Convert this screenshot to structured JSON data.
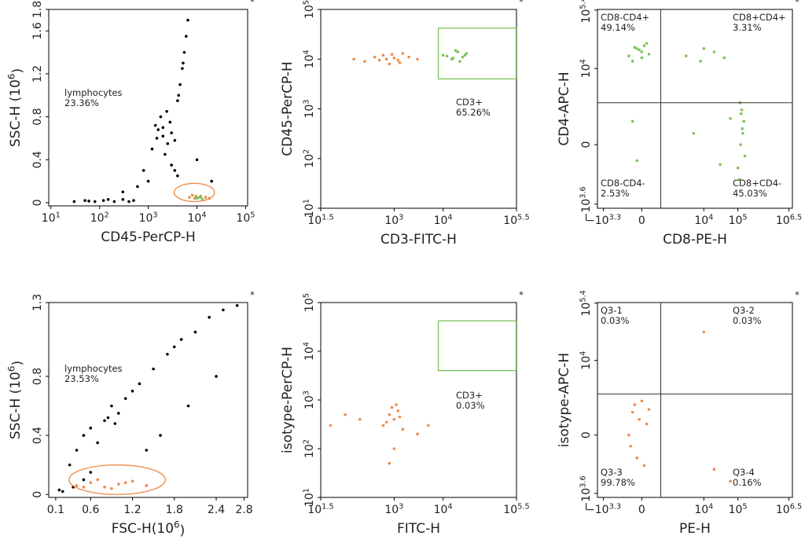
{
  "chart_data": [
    {
      "type": "scatter",
      "xlabel": "CD45-PerCP-H",
      "ylabel": "SSC-H (10^6)",
      "xscale": "log",
      "yscale": "linear",
      "xlim": [
        9,
        110000
      ],
      "ylim": [
        -0.03,
        1.8
      ],
      "xticks": [
        {
          "value": 10,
          "label": "10^1"
        },
        {
          "value": 100,
          "label": "10^2"
        },
        {
          "value": 1000,
          "label": "10^3"
        },
        {
          "value": 10000,
          "label": "10^4"
        },
        {
          "value": 100000,
          "label": "10^5"
        }
      ],
      "yticks": [
        0,
        0.4,
        0.8,
        1.2,
        1.6,
        1.8
      ],
      "marker": "*",
      "gate": {
        "shape": "ellipse",
        "color": "#f08a4b",
        "x": [
          3400,
          23000
        ],
        "y": [
          0.01,
          0.18
        ]
      },
      "gate_label": "lymphocytes",
      "gate_value": "23.36%",
      "gate_label_color": "#f08a4b",
      "series": [
        {
          "color": "#000000",
          "x": [
            30,
            50,
            80,
            120,
            200,
            300,
            500,
            150,
            400,
            60,
            1500,
            2000,
            2500,
            1800,
            3000,
            1200,
            2200,
            2800,
            1600,
            3500,
            2000,
            2400,
            1400,
            4000,
            4500,
            5000,
            5500,
            6000,
            6500,
            4200,
            5200,
            3500,
            4000,
            3000,
            800,
            1000,
            600,
            10000,
            20000,
            300
          ],
          "y": [
            0.01,
            0.02,
            0.01,
            0.02,
            0.01,
            0.03,
            0.02,
            0.03,
            0.01,
            0.015,
            0.6,
            0.7,
            0.55,
            0.8,
            0.65,
            0.5,
            0.45,
            0.75,
            0.68,
            0.58,
            0.62,
            0.85,
            0.72,
            0.95,
            1.1,
            1.25,
            1.4,
            1.55,
            1.7,
            1.0,
            1.3,
            0.3,
            0.25,
            0.35,
            0.3,
            0.2,
            0.15,
            0.4,
            0.2,
            0.1
          ]
        },
        {
          "color": "#f08a4b",
          "x": [
            7000,
            9000,
            12000,
            15000,
            8000,
            18000
          ],
          "y": [
            0.05,
            0.04,
            0.06,
            0.05,
            0.07,
            0.04
          ]
        },
        {
          "color": "#7cc45a",
          "x": [
            10000,
            12000,
            9500,
            13000,
            11000
          ],
          "y": [
            0.04,
            0.05,
            0.06,
            0.03,
            0.05
          ]
        }
      ]
    },
    {
      "type": "scatter",
      "xlabel": "CD3-FITC-H",
      "ylabel": "CD45-PerCP-H",
      "xscale": "log",
      "yscale": "log",
      "xlim": [
        31.62,
        316228
      ],
      "ylim": [
        10,
        100000
      ],
      "xticks": [
        {
          "value": 31.62,
          "label": "10^1.5"
        },
        {
          "value": 1000,
          "label": "10^3"
        },
        {
          "value": 10000,
          "label": "10^4"
        },
        {
          "value": 316228,
          "label": "10^5.5"
        }
      ],
      "yticks": [
        {
          "value": 10,
          "label": "10^1"
        },
        {
          "value": 100,
          "label": "10^2"
        },
        {
          "value": 1000,
          "label": "10^3"
        },
        {
          "value": 10000,
          "label": "10^4"
        },
        {
          "value": 100000,
          "label": "10^5"
        }
      ],
      "marker": "*",
      "gate": {
        "shape": "rect",
        "color": "#7cc45a",
        "x": [
          8000,
          310000
        ],
        "y": [
          4000,
          42000
        ]
      },
      "gate_label": "CD3+",
      "gate_value": "65.26%",
      "gate_label_color": "#7cc45a",
      "series": [
        {
          "color": "#f08a4b",
          "x": [
            150,
            250,
            400,
            600,
            800,
            1000,
            1200,
            1500,
            2000,
            3000,
            500,
            900,
            1300,
            700
          ],
          "y": [
            10000,
            9000,
            11000,
            12000,
            8000,
            10500,
            9500,
            13000,
            11000,
            10000,
            9500,
            12500,
            8500,
            10000
          ]
        },
        {
          "color": "#7cc45a",
          "x": [
            10000,
            15000,
            20000,
            25000,
            30000,
            18000,
            22000,
            12000,
            28000,
            16000
          ],
          "y": [
            12000,
            10000,
            14000,
            11000,
            13000,
            15000,
            9000,
            11500,
            12000,
            10500
          ]
        }
      ]
    },
    {
      "type": "scatter",
      "xlabel": "CD8-PE-H",
      "ylabel": "CD4-APC-H",
      "xscale": "biex",
      "yscale": "biex",
      "xlim": [
        -3000,
        4000000
      ],
      "ylim": [
        -5000,
        260000
      ],
      "xticks": [
        {
          "value": -1995.26,
          "label": "−10^3.3"
        },
        0,
        {
          "value": 10000,
          "label": "10^4"
        },
        {
          "value": 100000,
          "label": "10^5"
        },
        {
          "value": 3162278,
          "label": "10^6.5"
        }
      ],
      "yticks": [
        {
          "value": -3981.07,
          "label": "−10^3.6"
        },
        0,
        {
          "value": 10000,
          "label": "10^4"
        },
        {
          "value": 251189,
          "label": "10^5.4"
        }
      ],
      "marker": "*",
      "quadrant": {
        "x": 500,
        "y": 1500
      },
      "quadrants": [
        {
          "name": "CD8-CD4+",
          "value": "49.14%"
        },
        {
          "name": "CD8+CD4+",
          "value": "3.31%"
        },
        {
          "name": "CD8-CD4-",
          "value": "2.53%"
        },
        {
          "name": "CD8+CD4-",
          "value": "45.03%"
        }
      ],
      "series": [
        {
          "color": "#7cc45a",
          "x": [
            -300,
            -100,
            0,
            100,
            -200,
            50,
            -50,
            150,
            -150,
            0,
            100000,
            120000,
            150000,
            130000,
            110000,
            140000,
            125000,
            160000,
            115000,
            135000,
            3000,
            8000,
            20000,
            40000,
            -200,
            -100,
            5000,
            30000,
            10000,
            60000
          ],
          "y": [
            20000,
            30000,
            25000,
            40000,
            15000,
            35000,
            28000,
            22000,
            32000,
            18000,
            -500,
            0,
            500,
            1000,
            -1000,
            200,
            800,
            -200,
            1500,
            300,
            20000,
            15000,
            25000,
            18000,
            500,
            -300,
            200,
            -400,
            30000,
            600
          ]
        }
      ]
    },
    {
      "type": "scatter",
      "xlabel": "FSC-H(10^6)",
      "ylabel": "SSC-H (10^6)",
      "xscale": "linear",
      "yscale": "linear",
      "xlim": [
        0,
        2.85
      ],
      "ylim": [
        -0.02,
        1.3
      ],
      "xticks": [
        0.1,
        0.6,
        1.2,
        1.8,
        2.4,
        2.8
      ],
      "yticks": [
        0,
        0.4,
        0.8,
        1.3
      ],
      "marker": "*",
      "gate": {
        "shape": "ellipse",
        "color": "#f08a4b",
        "x": [
          0.29,
          1.67
        ],
        "y": [
          0,
          0.2
        ]
      },
      "gate_label": "lymphocytes",
      "gate_value": "23.53%",
      "gate_label_color": "#f08a4b",
      "series": [
        {
          "color": "#000000",
          "x": [
            0.3,
            0.4,
            0.5,
            0.6,
            0.8,
            1.0,
            0.9,
            0.7,
            1.1,
            1.2,
            0.85,
            0.95,
            1.3,
            1.5,
            1.7,
            1.9,
            2.1,
            2.3,
            2.5,
            2.7,
            1.6,
            2.0,
            2.4,
            0.5,
            0.35,
            0.2,
            0.15,
            1.4,
            0.6,
            1.8
          ],
          "y": [
            0.2,
            0.3,
            0.4,
            0.45,
            0.5,
            0.55,
            0.6,
            0.35,
            0.65,
            0.7,
            0.52,
            0.48,
            0.75,
            0.85,
            0.95,
            1.05,
            1.1,
            1.2,
            1.25,
            1.28,
            0.4,
            0.6,
            0.8,
            0.1,
            0.05,
            0.02,
            0.03,
            0.3,
            0.15,
            1.0
          ]
        },
        {
          "color": "#f08a4b",
          "x": [
            0.4,
            0.6,
            0.8,
            1.0,
            1.2,
            1.4,
            0.7,
            0.9,
            1.1,
            0.5
          ],
          "y": [
            0.06,
            0.08,
            0.05,
            0.07,
            0.09,
            0.06,
            0.1,
            0.04,
            0.08,
            0.05
          ]
        }
      ]
    },
    {
      "type": "scatter",
      "xlabel": "FITC-H",
      "ylabel": "isotype-PerCP-H",
      "xscale": "log",
      "yscale": "log",
      "xlim": [
        31.62,
        316228
      ],
      "ylim": [
        10,
        100000
      ],
      "xticks": [
        {
          "value": 31.62,
          "label": "10^1.5"
        },
        {
          "value": 1000,
          "label": "10^3"
        },
        {
          "value": 10000,
          "label": "10^4"
        },
        {
          "value": 316228,
          "label": "10^5.5"
        }
      ],
      "yticks": [
        {
          "value": 10,
          "label": "10^1"
        },
        {
          "value": 100,
          "label": "10^2"
        },
        {
          "value": 1000,
          "label": "10^3"
        },
        {
          "value": 10000,
          "label": "10^4"
        },
        {
          "value": 100000,
          "label": "10^5"
        }
      ],
      "marker": "*",
      "gate": {
        "shape": "rect",
        "color": "#7cc45a",
        "x": [
          8000,
          310000
        ],
        "y": [
          4000,
          42000
        ]
      },
      "gate_label": "CD3+",
      "gate_value": "0.03%",
      "gate_label_color": "#7cc45a",
      "series": [
        {
          "color": "#f08a4b",
          "x": [
            600,
            800,
            1000,
            1200,
            1500,
            900,
            700,
            1100,
            1300,
            200,
            100,
            50,
            3000,
            5000,
            1000,
            800
          ],
          "y": [
            300,
            500,
            400,
            600,
            250,
            700,
            350,
            800,
            450,
            400,
            500,
            300,
            200,
            300,
            100,
            50
          ]
        }
      ]
    },
    {
      "type": "scatter",
      "xlabel": "PE-H",
      "ylabel": "isotype-APC-H",
      "xscale": "biex",
      "yscale": "biex",
      "xlim": [
        -3000,
        4000000
      ],
      "ylim": [
        -5000,
        260000
      ],
      "xticks": [
        {
          "value": -1995.26,
          "label": "−10^3.3"
        },
        0,
        {
          "value": 10000,
          "label": "10^4"
        },
        {
          "value": 100000,
          "label": "10^5"
        },
        {
          "value": 3162278,
          "label": "10^6.5"
        }
      ],
      "yticks": [
        {
          "value": -3981.07,
          "label": "−10^3.6"
        },
        0,
        {
          "value": 10000,
          "label": "10^4"
        },
        {
          "value": 251189,
          "label": "10^5.4"
        }
      ],
      "marker": "*",
      "quadrant": {
        "x": 500,
        "y": 1500
      },
      "quadrants": [
        {
          "name": "Q3-1",
          "value": "0.03%"
        },
        {
          "name": "Q3-2",
          "value": "0.03%"
        },
        {
          "name": "Q3-3",
          "value": "99.78%"
        },
        {
          "name": "Q3-4",
          "value": "0.16%"
        }
      ],
      "series": [
        {
          "color": "#f08a4b",
          "x": [
            -300,
            -200,
            -100,
            0,
            100,
            -250,
            -150,
            50,
            -50,
            150,
            20000,
            10000,
            60000
          ],
          "y": [
            0,
            500,
            -500,
            1000,
            200,
            -200,
            800,
            -800,
            300,
            600,
            -1000,
            50000,
            -2000
          ]
        }
      ]
    }
  ]
}
